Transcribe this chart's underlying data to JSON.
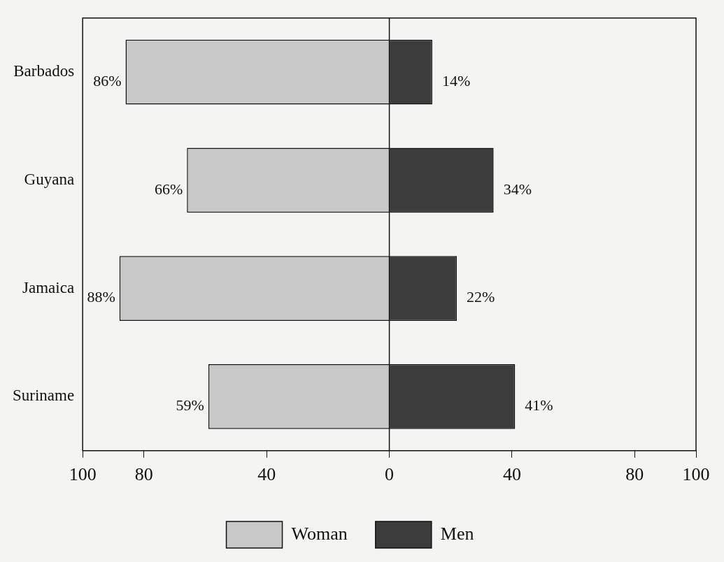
{
  "chart_data": {
    "type": "bar",
    "orientation": "horizontal",
    "categories": [
      "Barbados",
      "Guyana",
      "Jamaica",
      "Suriname"
    ],
    "series": [
      {
        "name": "Woman",
        "color": "#c8c8c8",
        "base": [
          -86,
          -66,
          -88,
          -59
        ],
        "values": [
          86,
          66,
          88,
          59
        ],
        "value_labels": [
          "86%",
          "66%",
          "88%",
          "59%"
        ]
      },
      {
        "name": "Men",
        "color": "#3c3c3c",
        "values": [
          14,
          34,
          22,
          41
        ],
        "value_labels": [
          "14%",
          "34%",
          "22%",
          "41%"
        ]
      }
    ],
    "xlim": [
      -100,
      100
    ],
    "xticks": [
      {
        "value": -100,
        "label": "100"
      },
      {
        "value": -80,
        "label": "80"
      },
      {
        "value": -40,
        "label": "40"
      },
      0,
      40,
      {
        "value": 80,
        "label": "80"
      },
      {
        "value": 100,
        "label": "100"
      }
    ],
    "ref_lines": [
      {
        "axis": "x",
        "value": 0
      }
    ],
    "grid": false,
    "legend": "bottom"
  }
}
